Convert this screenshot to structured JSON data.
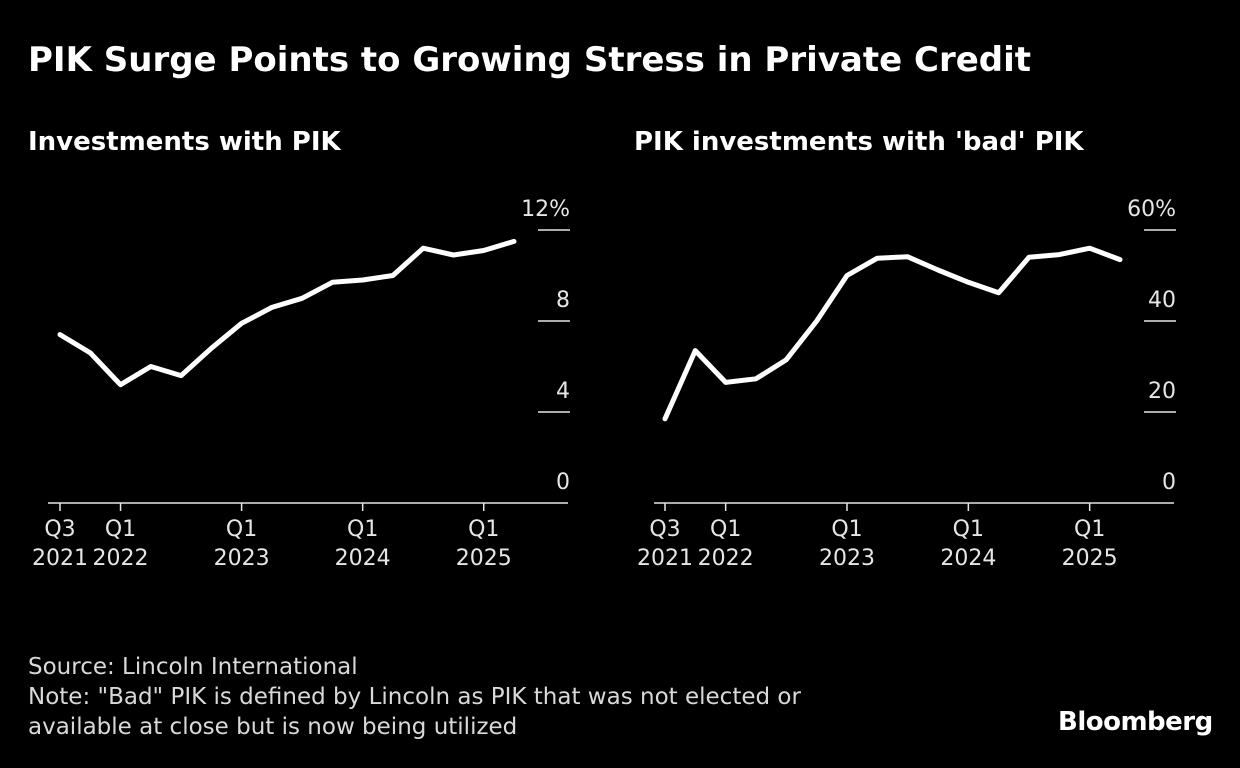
{
  "title": "PIK Surge Points to Growing Stress in Private Credit",
  "footer": {
    "source": "Source: Lincoln International",
    "note_line1": "Note: \"Bad\" PIK is defined by Lincoln as PIK that was not elected or",
    "note_line2": "available at close but is now being utilized",
    "brand": "Bloomberg"
  },
  "colors": {
    "background": "#000000",
    "line": "#ffffff",
    "axis": "#e6e6e6"
  },
  "chart_data": [
    {
      "type": "line",
      "title": "Investments with PIK",
      "ylim": [
        0,
        12
      ],
      "y_ticks": [
        0,
        4,
        8,
        12
      ],
      "y_tick_labels": [
        "0",
        "4",
        "8",
        "12%"
      ],
      "x_tick_labels": [
        {
          "index": 0,
          "line1": "Q3",
          "line2": "2021"
        },
        {
          "index": 2,
          "line1": "Q1",
          "line2": "2022"
        },
        {
          "index": 6,
          "line1": "Q1",
          "line2": "2023"
        },
        {
          "index": 10,
          "line1": "Q1",
          "line2": "2024"
        },
        {
          "index": 14,
          "line1": "Q1",
          "line2": "2025"
        }
      ],
      "x": [
        "Q3 2021",
        "Q4 2021",
        "Q1 2022",
        "Q2 2022",
        "Q3 2022",
        "Q4 2022",
        "Q1 2023",
        "Q2 2023",
        "Q3 2023",
        "Q4 2023",
        "Q1 2024",
        "Q2 2024",
        "Q3 2024",
        "Q4 2024",
        "Q1 2025",
        "Q2 2025"
      ],
      "values": [
        7.4,
        6.6,
        5.2,
        6.0,
        5.6,
        6.8,
        7.9,
        8.6,
        9.0,
        9.7,
        9.8,
        10.0,
        11.2,
        10.9,
        11.1,
        11.5
      ],
      "grid": false
    },
    {
      "type": "line",
      "title": "PIK investments with 'bad' PIK",
      "ylim": [
        0,
        60
      ],
      "y_ticks": [
        0,
        20,
        40,
        60
      ],
      "y_tick_labels": [
        "0",
        "20",
        "40",
        "60%"
      ],
      "x_tick_labels": [
        {
          "index": 0,
          "line1": "Q3",
          "line2": "2021"
        },
        {
          "index": 2,
          "line1": "Q1",
          "line2": "2022"
        },
        {
          "index": 6,
          "line1": "Q1",
          "line2": "2023"
        },
        {
          "index": 10,
          "line1": "Q1",
          "line2": "2024"
        },
        {
          "index": 14,
          "line1": "Q1",
          "line2": "2025"
        }
      ],
      "x": [
        "Q3 2021",
        "Q4 2021",
        "Q1 2022",
        "Q2 2022",
        "Q3 2022",
        "Q4 2022",
        "Q1 2023",
        "Q2 2023",
        "Q3 2023",
        "Q4 2023",
        "Q1 2024",
        "Q2 2024",
        "Q3 2024",
        "Q4 2024",
        "Q1 2025",
        "Q2 2025"
      ],
      "values": [
        18.5,
        33.5,
        26.5,
        27.3,
        31.5,
        40.0,
        50.0,
        53.8,
        54.1,
        51.2,
        48.5,
        46.2,
        54.0,
        54.6,
        56.0,
        53.5
      ],
      "grid": false
    }
  ]
}
